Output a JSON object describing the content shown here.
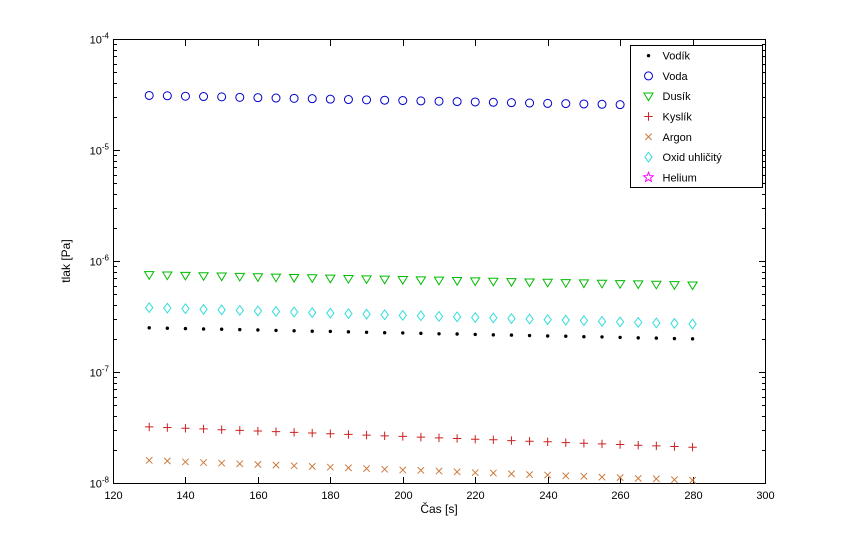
{
  "figure": {
    "background": "#ffffff",
    "xlabel": "Čas [s]",
    "ylabel": "tlak [Pa]"
  },
  "chart_data": {
    "type": "scatter",
    "title": "",
    "xlabel": "Čas [s]",
    "ylabel": "tlak [Pa]",
    "y_scale": "log",
    "grid": false,
    "legend_position": "upper-right",
    "xlim": [
      120,
      300
    ],
    "x_ticks": [
      120,
      140,
      160,
      180,
      200,
      220,
      240,
      260,
      280,
      300
    ],
    "ylim_exp": [
      -8,
      -4
    ],
    "y_ticks_exp": [
      -8,
      -7,
      -6,
      -5,
      -4
    ],
    "x": [
      130,
      135,
      140,
      145,
      150,
      155,
      160,
      165,
      170,
      175,
      180,
      185,
      190,
      195,
      200,
      205,
      210,
      215,
      220,
      225,
      230,
      235,
      240,
      245,
      250,
      255,
      260,
      265,
      270,
      275,
      280
    ],
    "series": [
      {
        "name": "Vodík",
        "marker": "dot",
        "color": "#000000",
        "values": [
          2.5e-07,
          2.48e-07,
          2.46e-07,
          2.44e-07,
          2.43e-07,
          2.41e-07,
          2.39e-07,
          2.37e-07,
          2.35e-07,
          2.33e-07,
          2.32e-07,
          2.3e-07,
          2.28e-07,
          2.26e-07,
          2.25e-07,
          2.23e-07,
          2.21e-07,
          2.2e-07,
          2.18e-07,
          2.16e-07,
          2.15e-07,
          2.13e-07,
          2.11e-07,
          2.1e-07,
          2.08e-07,
          2.07e-07,
          2.05e-07,
          2.03e-07,
          2.02e-07,
          2e-07,
          1.99e-07
        ]
      },
      {
        "name": "Voda",
        "marker": "circle",
        "color": "#0000cc",
        "values": [
          3.1e-05,
          3.08e-05,
          3.05e-05,
          3.03e-05,
          3.01e-05,
          2.98e-05,
          2.96e-05,
          2.94e-05,
          2.92e-05,
          2.9e-05,
          2.87e-05,
          2.85e-05,
          2.83e-05,
          2.81e-05,
          2.79e-05,
          2.77e-05,
          2.75e-05,
          2.73e-05,
          2.71e-05,
          2.69e-05,
          2.67e-05,
          2.65e-05,
          2.63e-05,
          2.62e-05,
          2.6e-05,
          2.58e-05,
          2.56e-05,
          2.54e-05,
          2.53e-05,
          2.51e-05,
          2.49e-05
        ]
      },
      {
        "name": "Dusík",
        "marker": "triangle-down",
        "color": "#00bb00",
        "values": [
          7.5e-07,
          7.45e-07,
          7.4e-07,
          7.34e-07,
          7.29e-07,
          7.24e-07,
          7.18e-07,
          7.13e-07,
          7.08e-07,
          7.03e-07,
          6.98e-07,
          6.93e-07,
          6.88e-07,
          6.83e-07,
          6.78e-07,
          6.73e-07,
          6.69e-07,
          6.64e-07,
          6.59e-07,
          6.55e-07,
          6.5e-07,
          6.45e-07,
          6.41e-07,
          6.36e-07,
          6.32e-07,
          6.28e-07,
          6.23e-07,
          6.19e-07,
          6.15e-07,
          6.1e-07,
          6.06e-07
        ]
      },
      {
        "name": "Kyslík",
        "marker": "plus",
        "color": "#cc2222",
        "values": [
          3.2e-08,
          3.16e-08,
          3.11e-08,
          3.07e-08,
          3.02e-08,
          2.98e-08,
          2.94e-08,
          2.9e-08,
          2.86e-08,
          2.82e-08,
          2.78e-08,
          2.74e-08,
          2.7e-08,
          2.66e-08,
          2.63e-08,
          2.59e-08,
          2.55e-08,
          2.52e-08,
          2.48e-08,
          2.45e-08,
          2.41e-08,
          2.38e-08,
          2.35e-08,
          2.31e-08,
          2.28e-08,
          2.25e-08,
          2.22e-08,
          2.19e-08,
          2.16e-08,
          2.13e-08,
          2.1e-08
        ]
      },
      {
        "name": "Argon",
        "marker": "x",
        "color": "#cc7a3d",
        "values": [
          1.6e-08,
          1.58e-08,
          1.55e-08,
          1.53e-08,
          1.51e-08,
          1.49e-08,
          1.47e-08,
          1.45e-08,
          1.43e-08,
          1.41e-08,
          1.39e-08,
          1.37e-08,
          1.35e-08,
          1.33e-08,
          1.31e-08,
          1.3e-08,
          1.28e-08,
          1.26e-08,
          1.24e-08,
          1.23e-08,
          1.21e-08,
          1.19e-08,
          1.18e-08,
          1.16e-08,
          1.15e-08,
          1.13e-08,
          1.12e-08,
          1.1e-08,
          1.09e-08,
          1.07e-08,
          1.06e-08
        ]
      },
      {
        "name": "Oxid uhličitý",
        "marker": "diamond",
        "color": "#33dddd",
        "values": [
          3.8e-07,
          3.76e-07,
          3.72e-07,
          3.67e-07,
          3.63e-07,
          3.59e-07,
          3.55e-07,
          3.51e-07,
          3.47e-07,
          3.43e-07,
          3.39e-07,
          3.36e-07,
          3.32e-07,
          3.28e-07,
          3.24e-07,
          3.21e-07,
          3.17e-07,
          3.14e-07,
          3.1e-07,
          3.07e-07,
          3.03e-07,
          3e-07,
          2.96e-07,
          2.93e-07,
          2.9e-07,
          2.86e-07,
          2.83e-07,
          2.8e-07,
          2.77e-07,
          2.74e-07,
          2.71e-07
        ]
      },
      {
        "name": "Helium",
        "marker": "pentagram",
        "color": "#ff00ff",
        "values": []
      }
    ]
  }
}
